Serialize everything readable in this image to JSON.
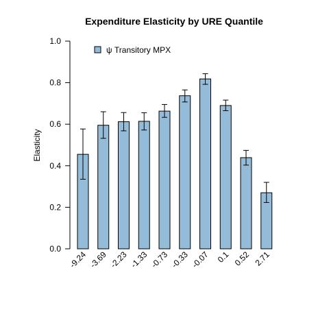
{
  "chart_data": {
    "type": "bar",
    "title": "Expenditure Elasticity  by  URE Quantile",
    "xlabel": "",
    "ylabel": "Elasticity",
    "ylim": [
      0,
      1
    ],
    "yticks": [
      "0.0",
      "0.2",
      "0.4",
      "0.6",
      "0.8",
      "1.0"
    ],
    "categories": [
      "-9.24",
      "-3.69",
      "-2.23",
      "-1.33",
      "-0.73",
      "-0.33",
      "-0.07",
      "0.1",
      "0.52",
      "2.71"
    ],
    "series": [
      {
        "name": "ψ Transitory MPX",
        "color": "#94bcd8",
        "values": [
          0.455,
          0.595,
          0.612,
          0.614,
          0.663,
          0.737,
          0.818,
          0.69,
          0.439,
          0.27
        ],
        "error_low": [
          0.335,
          0.532,
          0.568,
          0.572,
          0.633,
          0.707,
          0.792,
          0.665,
          0.403,
          0.223
        ],
        "error_high": [
          0.577,
          0.66,
          0.656,
          0.655,
          0.695,
          0.765,
          0.843,
          0.716,
          0.474,
          0.32
        ]
      }
    ],
    "legend_position": "top-left",
    "grid": false
  }
}
